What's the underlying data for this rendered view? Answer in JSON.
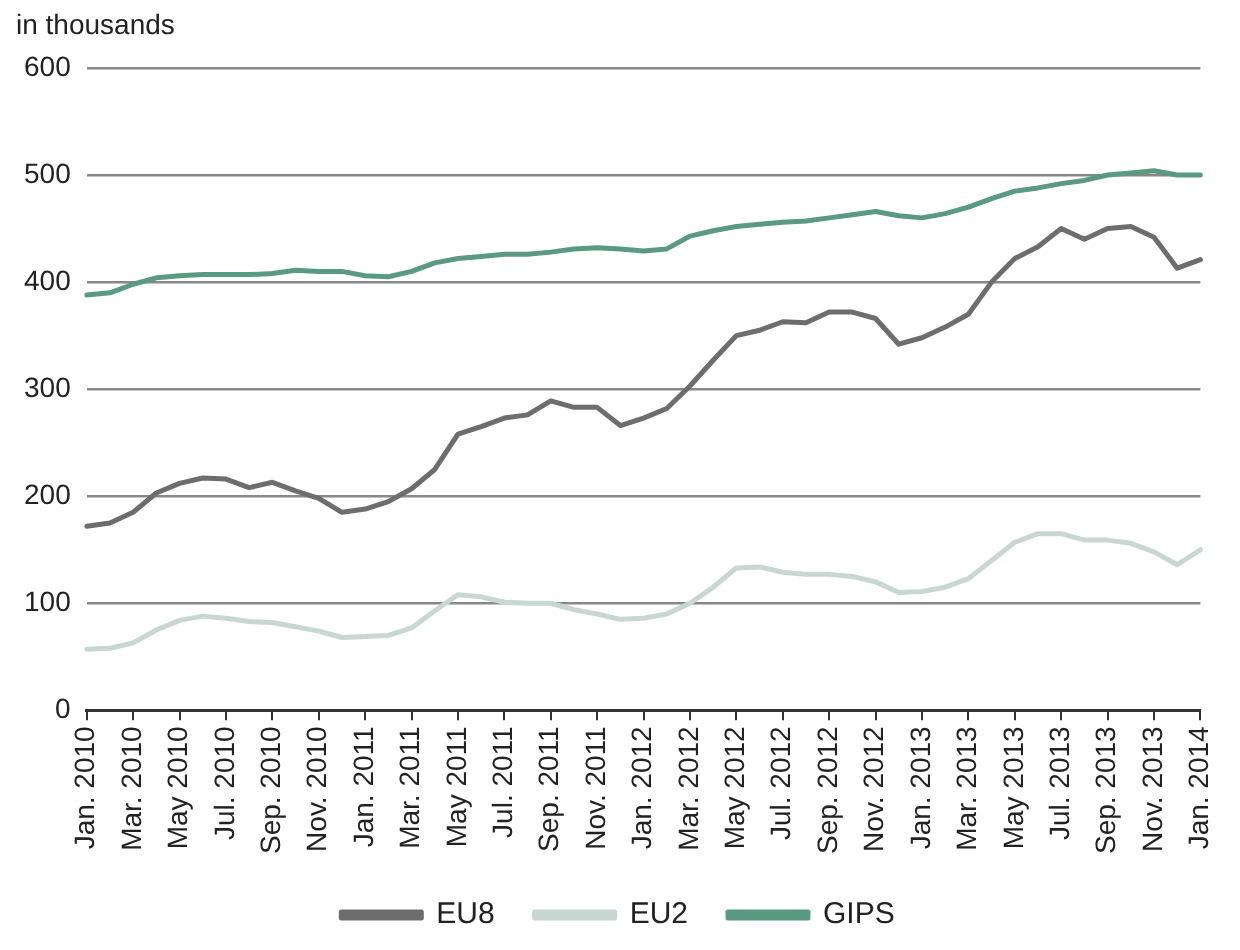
{
  "chart_data": {
    "type": "line",
    "ylabel": "in thousands",
    "categories": [
      "Jan. 2010",
      null,
      "Mar. 2010",
      null,
      "May 2010",
      null,
      "Jul. 2010",
      null,
      "Sep. 2010",
      null,
      "Nov. 2010",
      null,
      "Jan. 2011",
      null,
      "Mar. 2011",
      null,
      "May 2011",
      null,
      "Jul. 2011",
      null,
      "Sep. 2011",
      null,
      "Nov. 2011",
      null,
      "Jan. 2012",
      null,
      "Mar. 2012",
      null,
      "May 2012",
      null,
      "Jul. 2012",
      null,
      "Sep. 2012",
      null,
      "Nov. 2012",
      null,
      "Jan. 2013",
      null,
      "Mar. 2013",
      null,
      "May 2013",
      null,
      "Jul. 2013",
      null,
      "Sep. 2013",
      null,
      "Nov. 2013",
      null,
      "Jan. 2014"
    ],
    "series": [
      {
        "name": "EU8",
        "color": "#6d6d6d",
        "values": [
          172,
          175,
          185,
          203,
          212,
          217,
          216,
          208,
          213,
          205,
          198,
          185,
          188,
          195,
          207,
          225,
          258,
          265,
          273,
          276,
          289,
          283,
          283,
          266,
          273,
          282,
          303,
          327,
          350,
          355,
          363,
          362,
          372,
          372,
          366,
          342,
          348,
          358,
          370,
          400,
          422,
          433,
          450,
          440,
          450,
          452,
          442,
          413,
          421
        ]
      },
      {
        "name": "EU2",
        "color": "#c8d8d0",
        "values": [
          57,
          58,
          63,
          75,
          84,
          88,
          86,
          83,
          82,
          78,
          74,
          68,
          69,
          70,
          77,
          93,
          108,
          106,
          101,
          100,
          100,
          94,
          90,
          85,
          86,
          90,
          100,
          115,
          133,
          134,
          129,
          127,
          127,
          125,
          120,
          110,
          111,
          115,
          123,
          140,
          157,
          165,
          165,
          159,
          159,
          156,
          148,
          136,
          150
        ]
      },
      {
        "name": "GIPS",
        "color": "#5a9a80",
        "values": [
          388,
          390,
          398,
          404,
          406,
          407,
          407,
          407,
          408,
          411,
          410,
          410,
          406,
          405,
          410,
          418,
          422,
          424,
          426,
          426,
          428,
          431,
          432,
          431,
          429,
          431,
          443,
          448,
          452,
          454,
          456,
          457,
          460,
          463,
          466,
          462,
          460,
          464,
          470,
          478,
          485,
          488,
          492,
          495,
          500,
          502,
          504,
          500,
          500
        ]
      }
    ],
    "ylim": [
      0,
      600
    ],
    "yticks": [
      0,
      100,
      200,
      300,
      400,
      500,
      600
    ],
    "grid": "y",
    "legend": "bottom",
    "marker": "none",
    "line_style": "solid"
  }
}
